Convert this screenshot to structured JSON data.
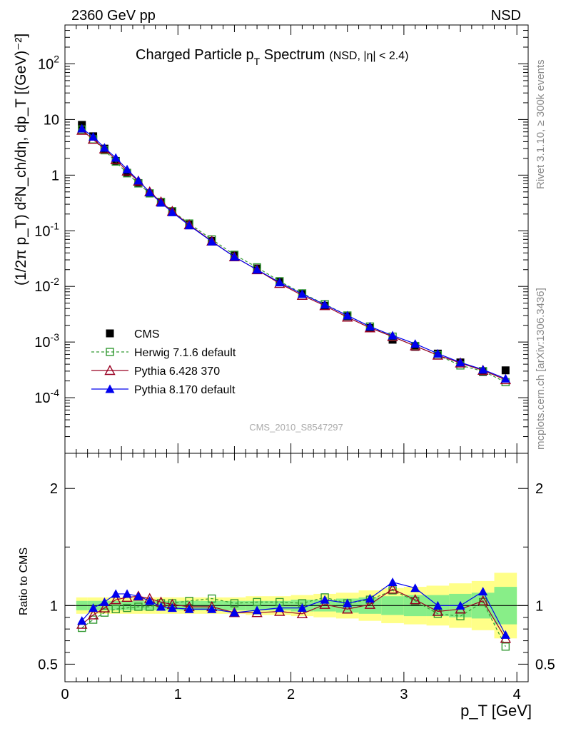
{
  "header": {
    "energy_label": "2360 GeV pp",
    "process_label": "NSD",
    "rivet_label": "Rivet 3.1.10, ≥ 300k events",
    "source_label": "mcplots.cern.ch [arXiv:1306.3436]",
    "analysis_label": "CMS_2010_S8547297"
  },
  "titles": {
    "main_title": "Charged Particle p",
    "main_title_sub": "T",
    "main_title_tail": " Spectrum",
    "main_title_extra": "(NSD, |η| < 2.4)",
    "y_upper": "(1/2π p_T) d²N_ch/dη, dp_T [(GeV)⁻²]",
    "y_lower": "Ratio to CMS",
    "x_label": "p_T [GeV]"
  },
  "colors": {
    "cms": "#000000",
    "herwig": "#339933",
    "pythia6": "#990022",
    "pythia8": "#0000ee",
    "band_inner": "#88ee88",
    "band_outer": "#ffff88"
  },
  "chart_data": [
    {
      "type": "scatter",
      "panel": "main",
      "y_scale": "log",
      "xlim": [
        0,
        4.1
      ],
      "ylim": [
        1e-05,
        500
      ],
      "x_ticks": [
        "0",
        "1",
        "2",
        "3",
        "4"
      ],
      "y_ticks": [
        "10^-4",
        "10^-3",
        "10^-2",
        "10^-1",
        "1",
        "10",
        "10^2"
      ],
      "x": [
        0.15,
        0.25,
        0.35,
        0.45,
        0.55,
        0.65,
        0.75,
        0.85,
        0.95,
        1.1,
        1.3,
        1.5,
        1.7,
        1.9,
        2.1,
        2.3,
        2.5,
        2.7,
        2.9,
        3.1,
        3.3,
        3.5,
        3.7,
        3.9
      ],
      "series": [
        {
          "name": "CMS",
          "marker": "square-filled",
          "values": [
            8.0,
            5.0,
            3.0,
            1.8,
            1.1,
            0.72,
            0.47,
            0.32,
            0.22,
            0.13,
            0.066,
            0.036,
            0.021,
            0.012,
            0.0074,
            0.0045,
            0.0029,
            0.0018,
            0.0011,
            0.00082,
            0.00062,
            0.00043,
            0.00029,
            0.00031
          ]
        },
        {
          "name": "Herwig 7.1.6 default",
          "marker": "square-open",
          "line": "dashed",
          "values": [
            6.6,
            4.4,
            2.8,
            1.75,
            1.08,
            0.71,
            0.47,
            0.33,
            0.225,
            0.135,
            0.07,
            0.037,
            0.022,
            0.0124,
            0.0075,
            0.0048,
            0.003,
            0.0019,
            0.00125,
            0.00085,
            0.00058,
            0.00038,
            0.0003,
            0.00019
          ]
        },
        {
          "name": "Pythia 6.428 370",
          "marker": "triangle-open",
          "line": "solid",
          "values": [
            6.4,
            4.4,
            2.95,
            1.9,
            1.18,
            0.78,
            0.5,
            0.33,
            0.223,
            0.128,
            0.065,
            0.034,
            0.0199,
            0.0113,
            0.0069,
            0.0045,
            0.0028,
            0.0018,
            0.00125,
            0.00085,
            0.00058,
            0.00042,
            0.00031,
            0.00021
          ]
        },
        {
          "name": "Pythia 8.170 default",
          "marker": "triangle-filled",
          "line": "solid",
          "values": [
            6.9,
            4.9,
            3.1,
            2.05,
            1.27,
            0.8,
            0.49,
            0.32,
            0.215,
            0.125,
            0.064,
            0.034,
            0.02,
            0.0118,
            0.0073,
            0.0047,
            0.003,
            0.0019,
            0.00131,
            0.00093,
            0.00062,
            0.00043,
            0.00032,
            0.00022
          ]
        }
      ]
    },
    {
      "type": "scatter",
      "panel": "ratio",
      "xlim": [
        0,
        4.1
      ],
      "ylim": [
        0.35,
        2.3
      ],
      "x_ticks": [
        "0",
        "1",
        "2",
        "3",
        "4"
      ],
      "y_ticks": [
        "0.5",
        "1",
        "2"
      ],
      "x": [
        0.15,
        0.25,
        0.35,
        0.45,
        0.55,
        0.65,
        0.75,
        0.85,
        0.95,
        1.1,
        1.3,
        1.5,
        1.7,
        1.9,
        2.1,
        2.3,
        2.5,
        2.7,
        2.9,
        3.1,
        3.3,
        3.5,
        3.7,
        3.9
      ],
      "band_edges": [
        0.1,
        0.2,
        0.3,
        0.4,
        0.5,
        0.6,
        0.7,
        0.8,
        0.9,
        1.0,
        1.2,
        1.4,
        1.6,
        1.8,
        2.0,
        2.2,
        2.4,
        2.6,
        2.8,
        3.0,
        3.2,
        3.4,
        3.6,
        3.8,
        4.0
      ],
      "band_inner": [
        0.04,
        0.04,
        0.04,
        0.04,
        0.04,
        0.04,
        0.04,
        0.04,
        0.04,
        0.04,
        0.04,
        0.04,
        0.04,
        0.04,
        0.05,
        0.05,
        0.06,
        0.07,
        0.08,
        0.09,
        0.09,
        0.1,
        0.11,
        0.16
      ],
      "band_outer": [
        0.07,
        0.07,
        0.07,
        0.07,
        0.07,
        0.07,
        0.07,
        0.07,
        0.07,
        0.07,
        0.07,
        0.07,
        0.08,
        0.08,
        0.09,
        0.1,
        0.11,
        0.13,
        0.15,
        0.16,
        0.17,
        0.19,
        0.21,
        0.28
      ],
      "series": [
        {
          "name": "Herwig 7.1.6 default",
          "marker": "square-open",
          "line": "dashed",
          "values": [
            0.81,
            0.88,
            0.94,
            0.97,
            0.98,
            0.99,
            0.99,
            1.02,
            1.02,
            1.04,
            1.06,
            1.02,
            1.03,
            1.03,
            1.02,
            1.07,
            1.02,
            1.05,
            1.13,
            1.04,
            0.93,
            0.91,
            1.03,
            0.65
          ]
        },
        {
          "name": "Pythia 6.428 370",
          "marker": "triangle-open",
          "line": "solid",
          "values": [
            0.84,
            0.92,
            0.98,
            1.05,
            1.07,
            1.08,
            1.06,
            1.03,
            1.01,
            0.99,
            0.99,
            0.94,
            0.94,
            0.95,
            0.93,
            1.01,
            0.97,
            1.01,
            1.14,
            1.05,
            0.95,
            0.97,
            1.04,
            0.72
          ]
        },
        {
          "name": "Pythia 8.170 default",
          "marker": "triangle-filled",
          "line": "solid",
          "values": [
            0.87,
            0.98,
            1.03,
            1.1,
            1.1,
            1.08,
            1.04,
            0.99,
            0.98,
            0.97,
            0.97,
            0.94,
            0.96,
            0.98,
            0.98,
            1.05,
            1.02,
            1.06,
            1.2,
            1.15,
            1.0,
            1.0,
            1.12,
            0.75
          ]
        }
      ]
    }
  ],
  "legend": [
    {
      "label": "CMS",
      "key": "cms"
    },
    {
      "label": "Herwig 7.1.6 default",
      "key": "herwig"
    },
    {
      "label": "Pythia 6.428 370",
      "key": "pythia6"
    },
    {
      "label": "Pythia 8.170 default",
      "key": "pythia8"
    }
  ]
}
